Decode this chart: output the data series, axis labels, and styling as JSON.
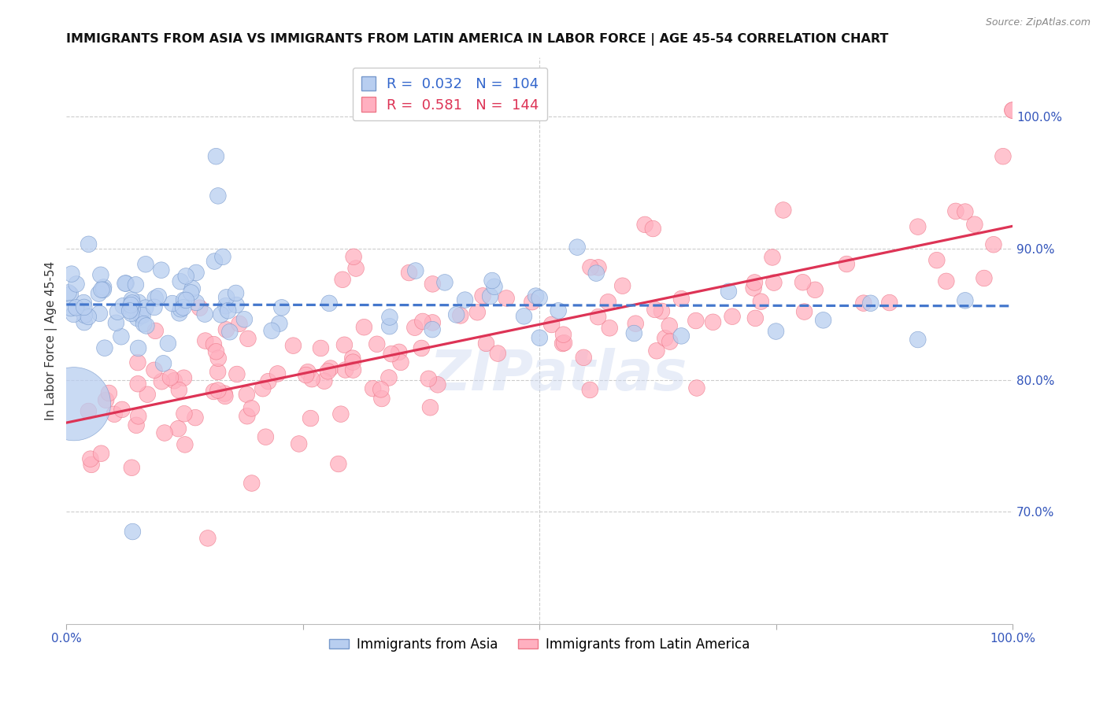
{
  "title": "IMMIGRANTS FROM ASIA VS IMMIGRANTS FROM LATIN AMERICA IN LABOR FORCE | AGE 45-54 CORRELATION CHART",
  "source": "Source: ZipAtlas.com",
  "ylabel": "In Labor Force | Age 45-54",
  "xlim": [
    0.0,
    1.0
  ],
  "ylim": [
    0.615,
    1.045
  ],
  "yticks": [
    0.7,
    0.8,
    0.9,
    1.0
  ],
  "ytick_labels": [
    "70.0%",
    "80.0%",
    "90.0%",
    "100.0%"
  ],
  "title_fontsize": 11.5,
  "axis_label_color": "#3355bb",
  "grid_color": "#cccccc",
  "asia_color": "#b8cef0",
  "asia_edge_color": "#7799cc",
  "latin_color": "#ffb0c0",
  "latin_edge_color": "#ee7788",
  "asia_line_color": "#4477cc",
  "latin_line_color": "#dd3355",
  "watermark": "ZIPatlas",
  "legend_r_asia": "0.032",
  "legend_n_asia": "104",
  "legend_r_latin": "0.581",
  "legend_n_latin": "144",
  "asia_r_color": "#3366cc",
  "asia_n_color": "#cc2222",
  "latin_r_color": "#dd3355",
  "latin_n_color": "#cc2222"
}
